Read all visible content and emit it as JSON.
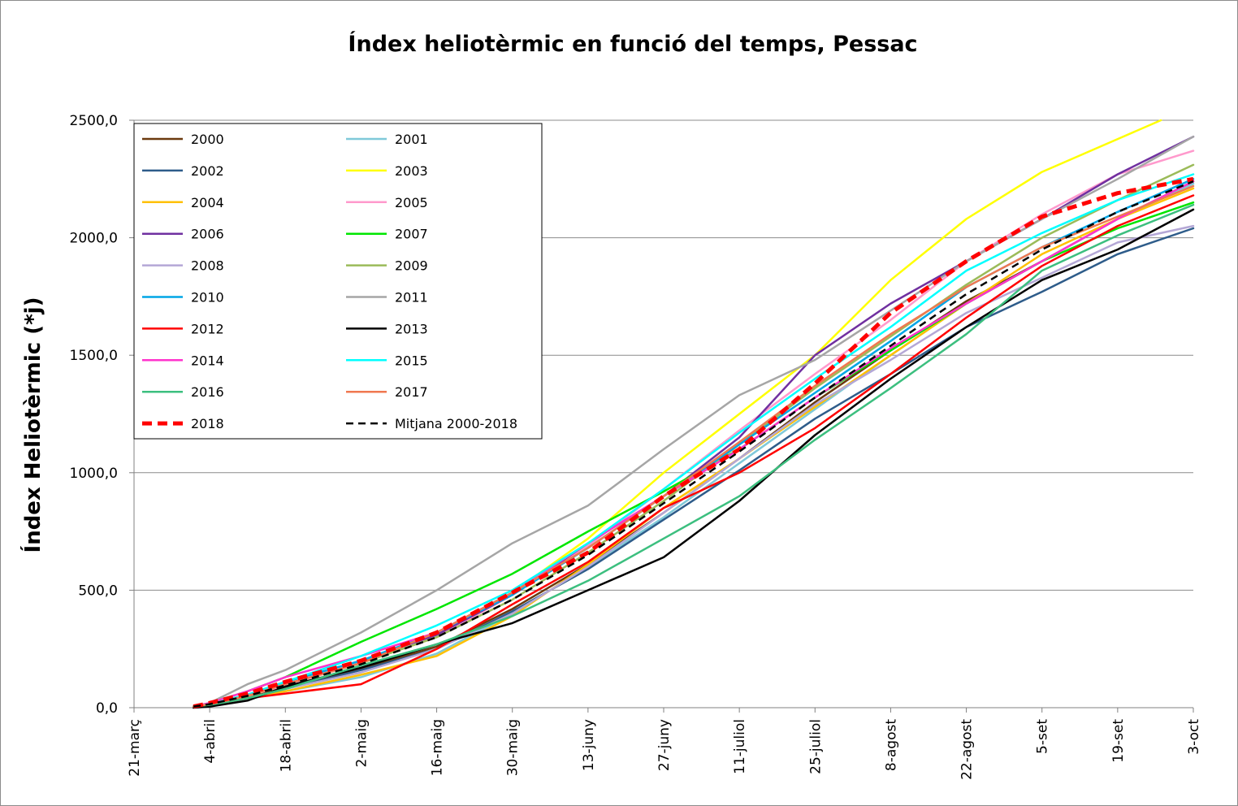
{
  "chart_data": {
    "type": "line",
    "title": "Índex heliotèrmic en funció del temps, Pessac",
    "xlabel": "",
    "ylabel": "Índex Heliotèrmic (*j)",
    "ylim": [
      0,
      2500
    ],
    "yticks": [
      "0,0",
      "500,0",
      "1000,0",
      "1500,0",
      "2000,0",
      "2500,0"
    ],
    "ytick_values": [
      0,
      500,
      1000,
      1500,
      2000,
      2500
    ],
    "xlim_days": [
      0,
      196
    ],
    "x_unit": "days since 21-març",
    "xticks": [
      "21-març",
      "4-abril",
      "18-abril",
      "2-maig",
      "16-maig",
      "30-maig",
      "13-juny",
      "27-juny",
      "11-juliol",
      "25-juliol",
      "8-agost",
      "22-agost",
      "5-set",
      "19-set",
      "3-oct"
    ],
    "xtick_days": [
      0,
      14,
      28,
      42,
      56,
      70,
      84,
      98,
      112,
      126,
      140,
      154,
      168,
      182,
      196
    ],
    "grid": "horizontal",
    "legend_position": "top-left",
    "series": [
      {
        "name": "2000",
        "color": "#6b3a0f",
        "dash": "solid",
        "width": 2.5,
        "x": [
          11,
          14,
          21,
          28,
          42,
          56,
          70,
          84,
          98,
          112,
          126,
          140,
          154,
          168,
          182,
          196
        ],
        "y": [
          5,
          15,
          45,
          85,
          165,
          260,
          420,
          610,
          830,
          1060,
          1300,
          1520,
          1730,
          1900,
          2080,
          2240
        ]
      },
      {
        "name": "2001",
        "color": "#7fc9d9",
        "dash": "solid",
        "width": 2.5,
        "x": [
          11,
          14,
          21,
          28,
          42,
          56,
          70,
          84,
          98,
          112,
          126,
          140,
          154,
          168,
          182,
          196
        ],
        "y": [
          5,
          12,
          35,
          70,
          130,
          230,
          400,
          600,
          810,
          1040,
          1270,
          1500,
          1720,
          1900,
          2080,
          2230
        ]
      },
      {
        "name": "2002",
        "color": "#2e5c8a",
        "dash": "solid",
        "width": 2.5,
        "x": [
          11,
          14,
          21,
          28,
          42,
          56,
          70,
          84,
          98,
          112,
          126,
          140,
          154,
          168,
          182,
          196
        ],
        "y": [
          5,
          12,
          40,
          80,
          160,
          250,
          410,
          590,
          800,
          1010,
          1230,
          1420,
          1620,
          1770,
          1930,
          2040
        ]
      },
      {
        "name": "2003",
        "color": "#ffff00",
        "dash": "solid",
        "width": 2.5,
        "x": [
          11,
          14,
          21,
          28,
          42,
          56,
          70,
          84,
          98,
          112,
          126,
          140,
          154,
          168,
          182,
          190
        ],
        "y": [
          5,
          15,
          50,
          95,
          190,
          300,
          490,
          720,
          1000,
          1250,
          1500,
          1820,
          2080,
          2280,
          2420,
          2500
        ]
      },
      {
        "name": "2004",
        "color": "#ffc000",
        "dash": "solid",
        "width": 2.5,
        "x": [
          11,
          14,
          21,
          28,
          42,
          56,
          70,
          84,
          98,
          112,
          126,
          140,
          154,
          168,
          182,
          196
        ],
        "y": [
          5,
          12,
          40,
          70,
          140,
          220,
          390,
          610,
          850,
          1060,
          1280,
          1500,
          1720,
          1930,
          2080,
          2210
        ]
      },
      {
        "name": "2005",
        "color": "#ff99cc",
        "dash": "solid",
        "width": 2.5,
        "x": [
          11,
          14,
          21,
          28,
          42,
          56,
          70,
          84,
          98,
          112,
          126,
          140,
          154,
          168,
          182,
          196
        ],
        "y": [
          5,
          15,
          50,
          95,
          190,
          300,
          480,
          690,
          930,
          1180,
          1420,
          1650,
          1900,
          2100,
          2270,
          2370
        ]
      },
      {
        "name": "2006",
        "color": "#7030a0",
        "dash": "solid",
        "width": 2.5,
        "x": [
          11,
          14,
          21,
          28,
          42,
          56,
          70,
          84,
          98,
          112,
          126,
          140,
          154,
          168,
          182,
          196
        ],
        "y": [
          5,
          15,
          55,
          110,
          200,
          310,
          480,
          700,
          900,
          1150,
          1500,
          1720,
          1900,
          2080,
          2270,
          2430
        ]
      },
      {
        "name": "2007",
        "color": "#00e600",
        "dash": "solid",
        "width": 2.5,
        "x": [
          11,
          14,
          21,
          28,
          42,
          56,
          70,
          84,
          98,
          112,
          126,
          140,
          154,
          168,
          182,
          196
        ],
        "y": [
          5,
          20,
          70,
          130,
          280,
          420,
          570,
          750,
          920,
          1100,
          1320,
          1520,
          1720,
          1900,
          2040,
          2150
        ]
      },
      {
        "name": "2008",
        "color": "#b4a7d6",
        "dash": "solid",
        "width": 2.5,
        "x": [
          11,
          14,
          21,
          28,
          42,
          56,
          70,
          84,
          98,
          112,
          126,
          140,
          154,
          168,
          182,
          196
        ],
        "y": [
          5,
          12,
          40,
          80,
          150,
          250,
          400,
          600,
          830,
          1060,
          1290,
          1480,
          1680,
          1830,
          1980,
          2050
        ]
      },
      {
        "name": "2009",
        "color": "#9bbb59",
        "dash": "solid",
        "width": 2.5,
        "x": [
          11,
          14,
          21,
          28,
          42,
          56,
          70,
          84,
          98,
          112,
          126,
          140,
          154,
          168,
          182,
          196
        ],
        "y": [
          5,
          15,
          50,
          100,
          190,
          300,
          460,
          660,
          880,
          1120,
          1360,
          1580,
          1800,
          2000,
          2160,
          2310
        ]
      },
      {
        "name": "2010",
        "color": "#00a6e6",
        "dash": "solid",
        "width": 2.5,
        "x": [
          11,
          14,
          21,
          28,
          42,
          56,
          70,
          84,
          98,
          112,
          126,
          140,
          154,
          168,
          182,
          196
        ],
        "y": [
          5,
          15,
          55,
          110,
          200,
          320,
          480,
          680,
          900,
          1120,
          1340,
          1560,
          1790,
          1960,
          2110,
          2250
        ]
      },
      {
        "name": "2011",
        "color": "#a6a6a6",
        "dash": "solid",
        "width": 2.5,
        "x": [
          11,
          14,
          21,
          28,
          42,
          56,
          70,
          84,
          98,
          112,
          126,
          140,
          154,
          168,
          182,
          196
        ],
        "y": [
          5,
          20,
          100,
          160,
          320,
          500,
          700,
          860,
          1100,
          1330,
          1480,
          1690,
          1900,
          2080,
          2250,
          2430
        ]
      },
      {
        "name": "2012",
        "color": "#ff0000",
        "dash": "solid",
        "width": 2.5,
        "x": [
          11,
          14,
          21,
          28,
          42,
          56,
          70,
          84,
          98,
          112,
          126,
          140,
          154,
          168,
          182,
          196
        ],
        "y": [
          5,
          12,
          40,
          60,
          100,
          250,
          440,
          620,
          850,
          1000,
          1190,
          1420,
          1660,
          1880,
          2050,
          2180
        ]
      },
      {
        "name": "2013",
        "color": "#000000",
        "dash": "solid",
        "width": 2.5,
        "x": [
          11,
          14,
          21,
          28,
          42,
          56,
          70,
          84,
          98,
          112,
          126,
          140,
          154,
          168,
          182,
          196
        ],
        "y": [
          0,
          5,
          30,
          90,
          170,
          270,
          360,
          500,
          640,
          880,
          1160,
          1400,
          1620,
          1820,
          1950,
          2120
        ]
      },
      {
        "name": "2014",
        "color": "#ff33cc",
        "dash": "solid",
        "width": 2.5,
        "x": [
          11,
          14,
          21,
          28,
          42,
          56,
          70,
          84,
          98,
          112,
          126,
          140,
          154,
          168,
          182,
          196
        ],
        "y": [
          5,
          20,
          70,
          130,
          220,
          320,
          490,
          700,
          900,
          1100,
          1320,
          1530,
          1720,
          1900,
          2080,
          2240
        ]
      },
      {
        "name": "2015",
        "color": "#00ffff",
        "dash": "solid",
        "width": 2.5,
        "x": [
          11,
          14,
          21,
          28,
          42,
          56,
          70,
          84,
          98,
          112,
          126,
          140,
          154,
          168,
          182,
          196
        ],
        "y": [
          5,
          15,
          55,
          110,
          220,
          350,
          500,
          700,
          930,
          1170,
          1400,
          1620,
          1860,
          2020,
          2160,
          2270
        ]
      },
      {
        "name": "2016",
        "color": "#3cbf7f",
        "dash": "solid",
        "width": 2.5,
        "x": [
          11,
          14,
          21,
          28,
          42,
          56,
          70,
          84,
          98,
          112,
          126,
          140,
          154,
          168,
          182,
          196
        ],
        "y": [
          5,
          12,
          40,
          80,
          180,
          270,
          390,
          540,
          720,
          900,
          1140,
          1360,
          1590,
          1860,
          2010,
          2140
        ]
      },
      {
        "name": "2017",
        "color": "#f07850",
        "dash": "solid",
        "width": 2.5,
        "x": [
          11,
          14,
          21,
          28,
          42,
          56,
          70,
          84,
          98,
          112,
          126,
          140,
          154,
          168,
          182,
          196
        ],
        "y": [
          5,
          15,
          50,
          100,
          190,
          320,
          490,
          680,
          900,
          1130,
          1370,
          1590,
          1790,
          1960,
          2090,
          2220
        ]
      },
      {
        "name": "2018",
        "color": "#ff0000",
        "dash": "dashed-bold",
        "width": 5,
        "x": [
          11,
          14,
          21,
          28,
          42,
          56,
          70,
          84,
          98,
          112,
          126,
          140,
          154,
          168,
          182,
          196
        ],
        "y": [
          5,
          20,
          60,
          110,
          200,
          320,
          490,
          660,
          900,
          1100,
          1380,
          1680,
          1900,
          2090,
          2190,
          2250
        ]
      },
      {
        "name": "Mitjana 2000-2018",
        "color": "#000000",
        "dash": "dashed",
        "width": 2.5,
        "x": [
          11,
          14,
          21,
          28,
          42,
          56,
          70,
          84,
          98,
          112,
          126,
          140,
          154,
          168,
          182,
          196
        ],
        "y": [
          5,
          15,
          50,
          95,
          185,
          300,
          460,
          650,
          870,
          1090,
          1320,
          1540,
          1760,
          1950,
          2110,
          2240
        ]
      }
    ]
  }
}
